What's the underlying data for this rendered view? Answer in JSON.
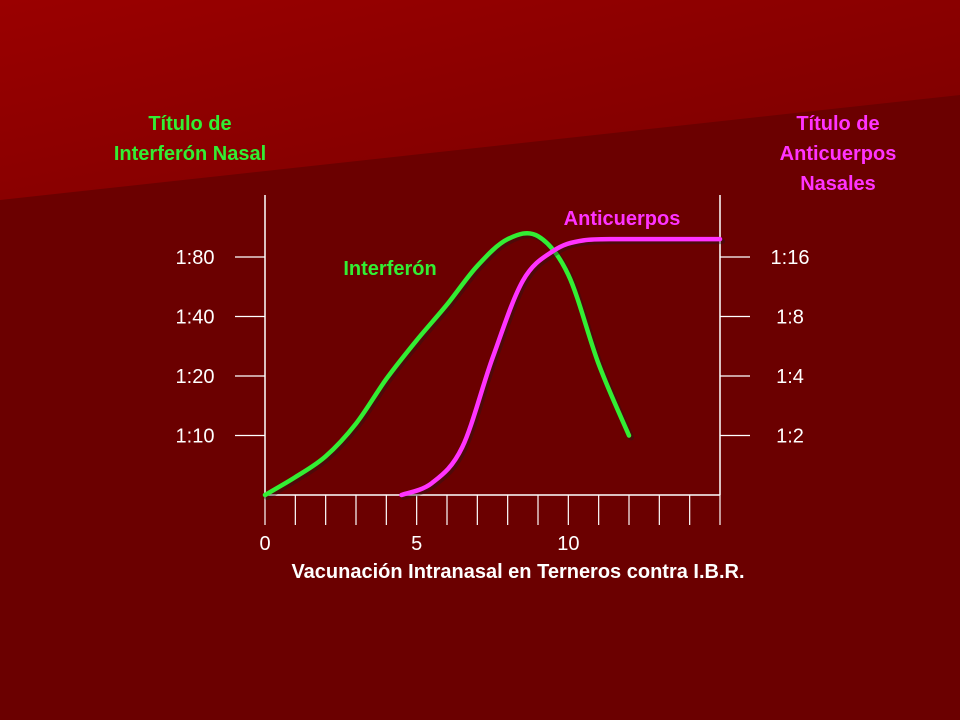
{
  "colors": {
    "background": "#6b0000",
    "axis": "#ffffff",
    "interferon": "#33ee33",
    "antibodies": "#ff33ff",
    "text": "#ffffff"
  },
  "chart_data": {
    "type": "line",
    "xlabel": "Vacunación Intranasal en Terneros contra I.B.R.",
    "ylabel_left": [
      "Título de",
      "Interferón Nasal"
    ],
    "ylabel_right": [
      "Título de",
      "Anticuerpos",
      "Nasales"
    ],
    "x_ticks": [
      0,
      5,
      10
    ],
    "x_minor_ticks": [
      0,
      1,
      2,
      3,
      4,
      5,
      6,
      7,
      8,
      9,
      10,
      11,
      12,
      13,
      14,
      15
    ],
    "xlim": [
      0,
      15
    ],
    "y_left_ticks": [
      "1:10",
      "1:20",
      "1:40",
      "1:80"
    ],
    "y_right_ticks": [
      "1:2",
      "1:4",
      "1:8",
      "1:16"
    ],
    "y_scale": "log2 dilution",
    "series": [
      {
        "name": "Interferón",
        "axis": "left",
        "points": [
          [
            0,
            0
          ],
          [
            1,
            0.3
          ],
          [
            2,
            0.65
          ],
          [
            3,
            1.2
          ],
          [
            4,
            1.95
          ],
          [
            5,
            2.6
          ],
          [
            6,
            3.2
          ],
          [
            7,
            3.85
          ],
          [
            8,
            4.3
          ],
          [
            9,
            4.35
          ],
          [
            10,
            3.7
          ],
          [
            11,
            2.2
          ],
          [
            12,
            1.0
          ]
        ]
      },
      {
        "name": "Anticuerpos",
        "axis": "right",
        "points": [
          [
            4.5,
            0
          ],
          [
            5.5,
            0.2
          ],
          [
            6.5,
            0.8
          ],
          [
            7.5,
            2.3
          ],
          [
            8.5,
            3.6
          ],
          [
            9.5,
            4.1
          ],
          [
            10.5,
            4.28
          ],
          [
            12,
            4.3
          ],
          [
            13.5,
            4.3
          ],
          [
            15,
            4.3
          ]
        ]
      }
    ],
    "grid": false
  }
}
